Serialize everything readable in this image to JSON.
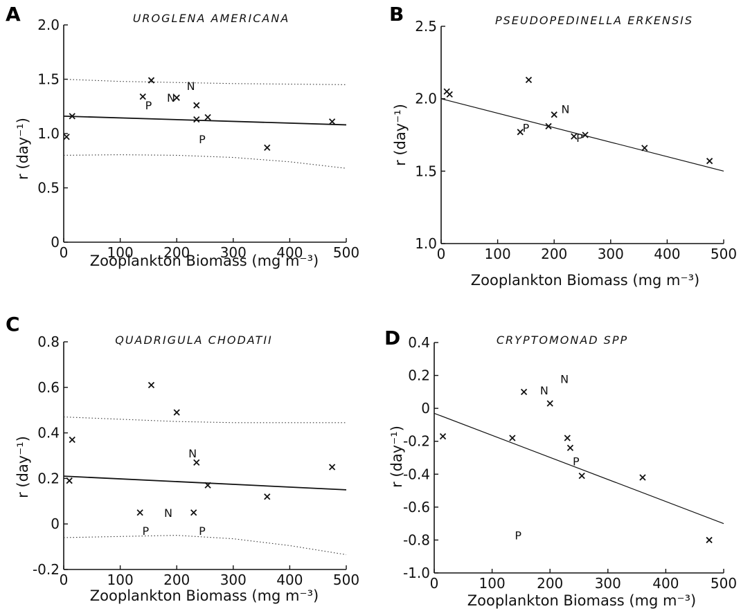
{
  "chart_data": [
    {
      "panel": "A",
      "type": "scatter",
      "title": "UROGLENA   AMERICANA",
      "xlabel": "Zooplankton   Biomass   (mg m⁻³)",
      "ylabel": "r (day⁻¹)",
      "xlim": [
        0,
        500
      ],
      "ylim": [
        0,
        2.0
      ],
      "xticks": [
        "0",
        "100",
        "200",
        "300",
        "400",
        "500"
      ],
      "yticks": [
        "0",
        "0.5",
        "1.0",
        "1.5",
        "2.0"
      ],
      "points": [
        {
          "x": 5,
          "y": 0.97,
          "m": "x"
        },
        {
          "x": 15,
          "y": 1.16,
          "m": "x"
        },
        {
          "x": 140,
          "y": 1.34,
          "m": "x"
        },
        {
          "x": 155,
          "y": 1.49,
          "m": "x"
        },
        {
          "x": 200,
          "y": 1.33,
          "m": "x"
        },
        {
          "x": 235,
          "y": 1.26,
          "m": "x"
        },
        {
          "x": 235,
          "y": 1.13,
          "m": "x"
        },
        {
          "x": 255,
          "y": 1.15,
          "m": "x"
        },
        {
          "x": 360,
          "y": 0.87,
          "m": "x"
        },
        {
          "x": 475,
          "y": 1.11,
          "m": "x"
        },
        {
          "x": 150,
          "y": 1.26,
          "m": "P"
        },
        {
          "x": 245,
          "y": 0.95,
          "m": "P"
        },
        {
          "x": 190,
          "y": 1.33,
          "m": "N"
        },
        {
          "x": 225,
          "y": 1.44,
          "m": "N"
        }
      ],
      "fit": {
        "x": [
          0,
          500
        ],
        "y": [
          1.16,
          1.08
        ]
      },
      "band_upper": {
        "x": [
          0,
          100,
          200,
          300,
          400,
          500
        ],
        "y": [
          1.5,
          1.48,
          1.47,
          1.46,
          1.455,
          1.45
        ]
      },
      "band_lower": {
        "x": [
          0,
          100,
          200,
          300,
          400,
          500
        ],
        "y": [
          0.8,
          0.805,
          0.8,
          0.78,
          0.74,
          0.68
        ]
      }
    },
    {
      "panel": "B",
      "type": "scatter",
      "title": "PSEUDOPEDINELLA   ERKENSIS",
      "xlabel": "Zooplankton   Biomass   (mg m⁻³)",
      "ylabel": "r (day⁻¹)",
      "xlim": [
        0,
        500
      ],
      "ylim": [
        1.0,
        2.5
      ],
      "xticks": [
        "0",
        "100",
        "200",
        "300",
        "400",
        "500"
      ],
      "yticks": [
        "1.0",
        "1.5",
        "2.0",
        "2.5"
      ],
      "points": [
        {
          "x": 10,
          "y": 2.05,
          "m": "x"
        },
        {
          "x": 15,
          "y": 2.03,
          "m": "x"
        },
        {
          "x": 155,
          "y": 2.13,
          "m": "x"
        },
        {
          "x": 140,
          "y": 1.77,
          "m": "x"
        },
        {
          "x": 190,
          "y": 1.81,
          "m": "x"
        },
        {
          "x": 200,
          "y": 1.89,
          "m": "x"
        },
        {
          "x": 235,
          "y": 1.74,
          "m": "x"
        },
        {
          "x": 255,
          "y": 1.75,
          "m": "x"
        },
        {
          "x": 360,
          "y": 1.66,
          "m": "x"
        },
        {
          "x": 475,
          "y": 1.57,
          "m": "x"
        },
        {
          "x": 150,
          "y": 1.8,
          "m": "P"
        },
        {
          "x": 245,
          "y": 1.73,
          "m": "P"
        },
        {
          "x": 220,
          "y": 1.93,
          "m": "N"
        }
      ],
      "fit": {
        "x": [
          0,
          500
        ],
        "y": [
          2.0,
          1.5
        ]
      }
    },
    {
      "panel": "C",
      "type": "scatter",
      "title": "QUADRIGULA   CHODATII",
      "xlabel": "Zooplankton   Biomass   (mg m⁻³)",
      "ylabel": "r (day⁻¹)",
      "xlim": [
        0,
        500
      ],
      "ylim": [
        -0.2,
        0.8
      ],
      "xticks": [
        "0",
        "100",
        "200",
        "300",
        "400",
        "500"
      ],
      "yticks": [
        "-0.2",
        "0",
        "0.2",
        "0.4",
        "0.6",
        "0.8"
      ],
      "points": [
        {
          "x": 10,
          "y": 0.19,
          "m": "x"
        },
        {
          "x": 15,
          "y": 0.37,
          "m": "x"
        },
        {
          "x": 135,
          "y": 0.05,
          "m": "x"
        },
        {
          "x": 155,
          "y": 0.61,
          "m": "x"
        },
        {
          "x": 200,
          "y": 0.49,
          "m": "x"
        },
        {
          "x": 230,
          "y": 0.05,
          "m": "x"
        },
        {
          "x": 235,
          "y": 0.27,
          "m": "x"
        },
        {
          "x": 255,
          "y": 0.17,
          "m": "x"
        },
        {
          "x": 360,
          "y": 0.12,
          "m": "x"
        },
        {
          "x": 475,
          "y": 0.25,
          "m": "x"
        },
        {
          "x": 145,
          "y": -0.03,
          "m": "P"
        },
        {
          "x": 245,
          "y": -0.03,
          "m": "P"
        },
        {
          "x": 185,
          "y": 0.05,
          "m": "N"
        },
        {
          "x": 228,
          "y": 0.31,
          "m": "N"
        }
      ],
      "fit": {
        "x": [
          0,
          500
        ],
        "y": [
          0.21,
          0.15
        ]
      },
      "band_upper": {
        "x": [
          0,
          100,
          200,
          300,
          400,
          500
        ],
        "y": [
          0.47,
          0.46,
          0.45,
          0.445,
          0.445,
          0.445
        ]
      },
      "band_lower": {
        "x": [
          0,
          100,
          200,
          300,
          400,
          500
        ],
        "y": [
          -0.06,
          -0.055,
          -0.05,
          -0.065,
          -0.095,
          -0.135
        ]
      }
    },
    {
      "panel": "D",
      "type": "scatter",
      "title": "CRYPTOMONAD   SPP",
      "xlabel": "Zooplankton   Biomass   (mg m⁻³)",
      "ylabel": "r (day⁻¹)",
      "xlim": [
        0,
        500
      ],
      "ylim": [
        -1.0,
        0.4
      ],
      "xticks": [
        "0",
        "100",
        "200",
        "300",
        "400",
        "500"
      ],
      "yticks": [
        "-1.0",
        "-0.8",
        "-0.6",
        "-0.4",
        "-0.2",
        "0",
        "0.2",
        "0.4"
      ],
      "points": [
        {
          "x": 15,
          "y": -0.17,
          "m": "x"
        },
        {
          "x": 135,
          "y": -0.18,
          "m": "x"
        },
        {
          "x": 155,
          "y": 0.1,
          "m": "x"
        },
        {
          "x": 200,
          "y": 0.03,
          "m": "x"
        },
        {
          "x": 230,
          "y": -0.18,
          "m": "x"
        },
        {
          "x": 235,
          "y": -0.24,
          "m": "x"
        },
        {
          "x": 255,
          "y": -0.41,
          "m": "x"
        },
        {
          "x": 360,
          "y": -0.42,
          "m": "x"
        },
        {
          "x": 475,
          "y": -0.8,
          "m": "x"
        },
        {
          "x": 145,
          "y": -0.77,
          "m": "P"
        },
        {
          "x": 245,
          "y": -0.32,
          "m": "P"
        },
        {
          "x": 190,
          "y": 0.11,
          "m": "N"
        },
        {
          "x": 225,
          "y": 0.18,
          "m": "N"
        }
      ],
      "fit": {
        "x": [
          0,
          500
        ],
        "y": [
          -0.03,
          -0.7
        ]
      }
    }
  ]
}
